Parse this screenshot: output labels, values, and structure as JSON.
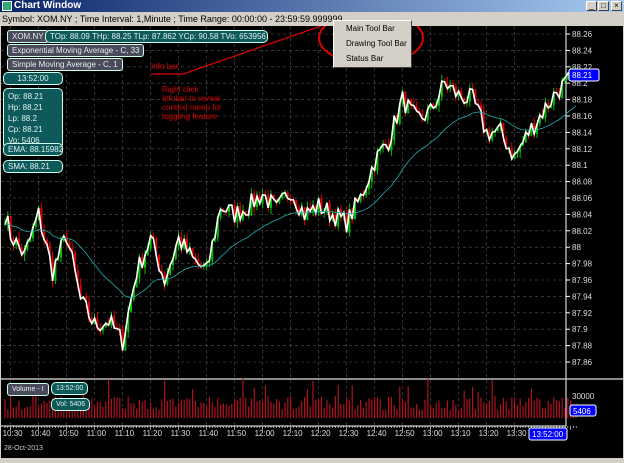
{
  "window": {
    "title": "Chart Window",
    "minimize": "_",
    "maximize": "□",
    "close": "×"
  },
  "info_line": "Symbol: XOM.NY ; Time Interval: 1,Minute ; Time Range: 00:00:00 - 23:59:59.999999",
  "info_bar": {
    "symbol": "XOM.NY",
    "stats": "TOp: 88.09 THp: 88.25 TLp: 87.862 YCp: 90.58 TVo: 653956",
    "ema_label": "Exponential Moving Average - C, 33",
    "sma_label": "Simple Moving Average - C, 1"
  },
  "cursor_panel": {
    "time": "13:52:00",
    "ohlcv": [
      "Op: 88.21",
      "Hp: 88.21",
      "Lp: 88.2",
      "Cp: 88.21",
      "Vo: 5406"
    ],
    "ema": "EMA: 88.15982",
    "sma": "SMA: 88.21"
  },
  "context_menu": {
    "items": [
      "Main Tool Bar",
      "Drawing Tool Bar",
      "Status Bar"
    ]
  },
  "annotations": {
    "info_bar": "Info bar",
    "hint": [
      "Right click",
      "Infobar to reveal",
      "context menu for",
      "toggling feature"
    ]
  },
  "volume_pane": {
    "label": "Volume - I",
    "time": "13:52:00",
    "vol": "Vol: 5406",
    "axis_label": "30000",
    "last": "5406"
  },
  "date": "28-Oct-2013",
  "colors": {
    "up": "#00c000",
    "down": "#e00000",
    "close_line": "#ffffff",
    "ema": "#20b0b0",
    "volume": "#b01020",
    "highlight": "#0000ff",
    "annotation": "#dd0000"
  },
  "chart_data": {
    "type": "line",
    "ylim": [
      87.85,
      88.27
    ],
    "yticks": [
      "88.26",
      "88.24",
      "88.22",
      "88.2",
      "88.18",
      "88.16",
      "88.14",
      "88.12",
      "88.1",
      "88.08",
      "88.06",
      "88.04",
      "88.02",
      "88",
      "87.98",
      "87.96",
      "87.94",
      "87.92",
      "87.9",
      "87.88",
      "87.86"
    ],
    "xticks": [
      "10:30",
      "10:40",
      "10:50",
      "11:00",
      "11:10",
      "11:20",
      "11:30",
      "11:40",
      "11:50",
      "12:00",
      "12:10",
      "12:20",
      "12:30",
      "12:40",
      "12:50",
      "13:00",
      "13:10",
      "13:20",
      "13:30"
    ],
    "last_time": "13:52:00",
    "last_price": "88.21",
    "close_5min": {
      "times": [
        "10:28",
        "10:30",
        "10:35",
        "10:40",
        "10:45",
        "10:50",
        "10:55",
        "11:00",
        "11:05",
        "11:10",
        "11:15",
        "11:20",
        "11:25",
        "11:30",
        "11:35",
        "11:40",
        "11:45",
        "11:50",
        "11:55",
        "12:00",
        "12:05",
        "12:10",
        "12:15",
        "12:20",
        "12:25",
        "12:30",
        "12:35",
        "12:40",
        "12:45",
        "12:50",
        "12:55",
        "13:00",
        "13:05",
        "13:10",
        "13:15",
        "13:20",
        "13:25",
        "13:30",
        "13:35",
        "13:40",
        "13:45",
        "13:52"
      ],
      "values": [
        88.04,
        88.015,
        87.99,
        88.04,
        87.97,
        88.015,
        87.935,
        87.905,
        87.91,
        87.885,
        87.97,
        88.01,
        87.96,
        88.01,
        87.985,
        87.97,
        88.05,
        88.04,
        88.05,
        88.065,
        88.045,
        88.07,
        88.04,
        88.05,
        88.04,
        88.03,
        88.06,
        88.105,
        88.13,
        88.18,
        88.155,
        88.165,
        88.2,
        88.185,
        88.18,
        88.14,
        88.14,
        88.11,
        88.14,
        88.165,
        88.19,
        88.21
      ]
    },
    "ema_period": 33
  }
}
